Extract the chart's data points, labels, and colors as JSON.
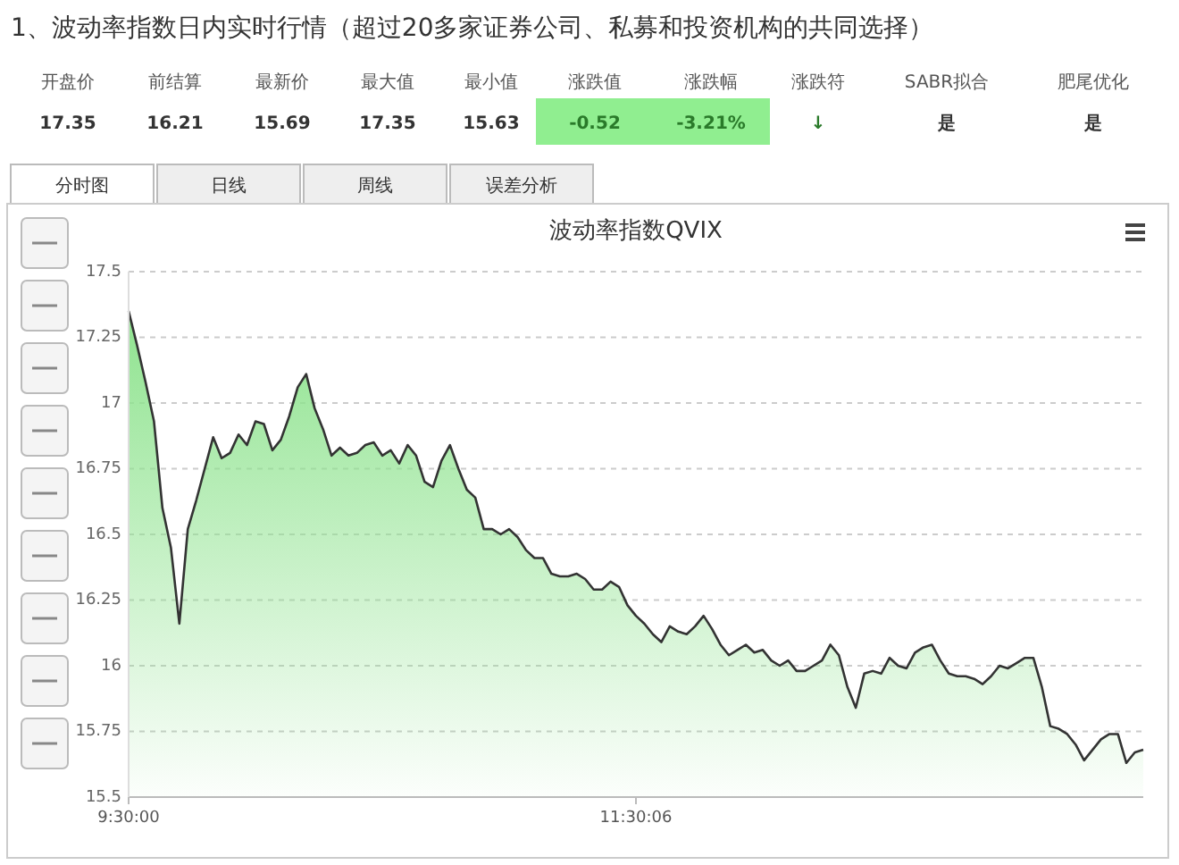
{
  "chart_data": [
    {
      "type": "other",
      "title": "1、波动率指数日内实时行情（超过20多家证券公司、私募和投资机构的共同选择）",
      "annotations": [
        "开盘价",
        "17.35",
        "前结算",
        "16.21",
        "最新价",
        "15.69",
        "最大值",
        "17.35",
        "最小值",
        "15.63",
        "涨跌值",
        "-0.52",
        "涨跌幅",
        "-3.21%",
        "涨跌符",
        "↓",
        "SABR拟合",
        "是",
        "肥尾优化",
        "是",
        "分时图",
        "日线",
        "周线",
        "误差分析"
      ]
    },
    {
      "type": "area",
      "title": "波动率指数QVIX",
      "color": "#8fe38f",
      "categories": [
        "9:30:00",
        null,
        null,
        null,
        null,
        null,
        null,
        null,
        null,
        null,
        null,
        null,
        null,
        null,
        null,
        null,
        null,
        null,
        null,
        null,
        null,
        null,
        null,
        null,
        null,
        null,
        null,
        null,
        null,
        null,
        null,
        null,
        null,
        null,
        null,
        null,
        null,
        null,
        null,
        null,
        null,
        null,
        null,
        null,
        null,
        null,
        null,
        null,
        null,
        null,
        null,
        null,
        null,
        null,
        null,
        null,
        null,
        null,
        null,
        null,
        "11:30:06",
        null,
        null,
        null,
        null,
        null,
        null,
        null,
        null,
        null,
        null,
        null,
        null,
        null,
        null,
        null,
        null,
        null,
        null,
        null,
        null,
        null,
        null,
        null,
        null,
        null,
        null,
        null,
        null,
        null,
        null,
        null,
        null,
        null,
        null,
        null,
        null,
        null,
        null,
        null,
        null,
        null,
        null,
        null,
        null,
        null,
        null,
        null,
        null,
        null,
        null,
        null,
        null,
        null,
        null,
        null,
        null,
        null,
        null,
        null,
        null
      ],
      "values": [
        17.35,
        17.22,
        17.08,
        16.93,
        16.6,
        16.45,
        16.16,
        16.52,
        16.63,
        16.75,
        16.87,
        16.79,
        16.81,
        16.88,
        16.84,
        16.93,
        16.92,
        16.82,
        16.86,
        16.95,
        17.06,
        17.11,
        16.98,
        16.9,
        16.8,
        16.83,
        16.8,
        16.81,
        16.84,
        16.85,
        16.8,
        16.82,
        16.77,
        16.84,
        16.8,
        16.7,
        16.68,
        16.78,
        16.84,
        16.75,
        16.67,
        16.64,
        16.52,
        16.52,
        16.5,
        16.52,
        16.49,
        16.44,
        16.41,
        16.41,
        16.35,
        16.34,
        16.34,
        16.35,
        16.33,
        16.29,
        16.29,
        16.32,
        16.3,
        16.23,
        16.19,
        16.16,
        16.12,
        16.09,
        16.15,
        16.13,
        16.12,
        16.15,
        16.19,
        16.14,
        16.08,
        16.04,
        16.06,
        16.08,
        16.05,
        16.06,
        16.02,
        16.0,
        16.02,
        15.98,
        15.98,
        16.0,
        16.02,
        16.08,
        16.04,
        15.92,
        15.84,
        15.97,
        15.98,
        15.97,
        16.03,
        16.0,
        15.99,
        16.05,
        16.07,
        16.08,
        16.02,
        15.97,
        15.96,
        15.96,
        15.95,
        15.93,
        15.96,
        16.0,
        15.99,
        16.01,
        16.03,
        16.03,
        15.92,
        15.77,
        15.76,
        15.74,
        15.7,
        15.64,
        15.68,
        15.72,
        15.74,
        15.74,
        15.63,
        15.67,
        15.68
      ],
      "ylim": [
        15.5,
        17.5
      ],
      "yticks": [
        15.5,
        15.75,
        16,
        16.25,
        16.5,
        16.75,
        17,
        17.25,
        17.5
      ],
      "grid": "y",
      "marker": "none",
      "line_style": "solid"
    }
  ]
}
